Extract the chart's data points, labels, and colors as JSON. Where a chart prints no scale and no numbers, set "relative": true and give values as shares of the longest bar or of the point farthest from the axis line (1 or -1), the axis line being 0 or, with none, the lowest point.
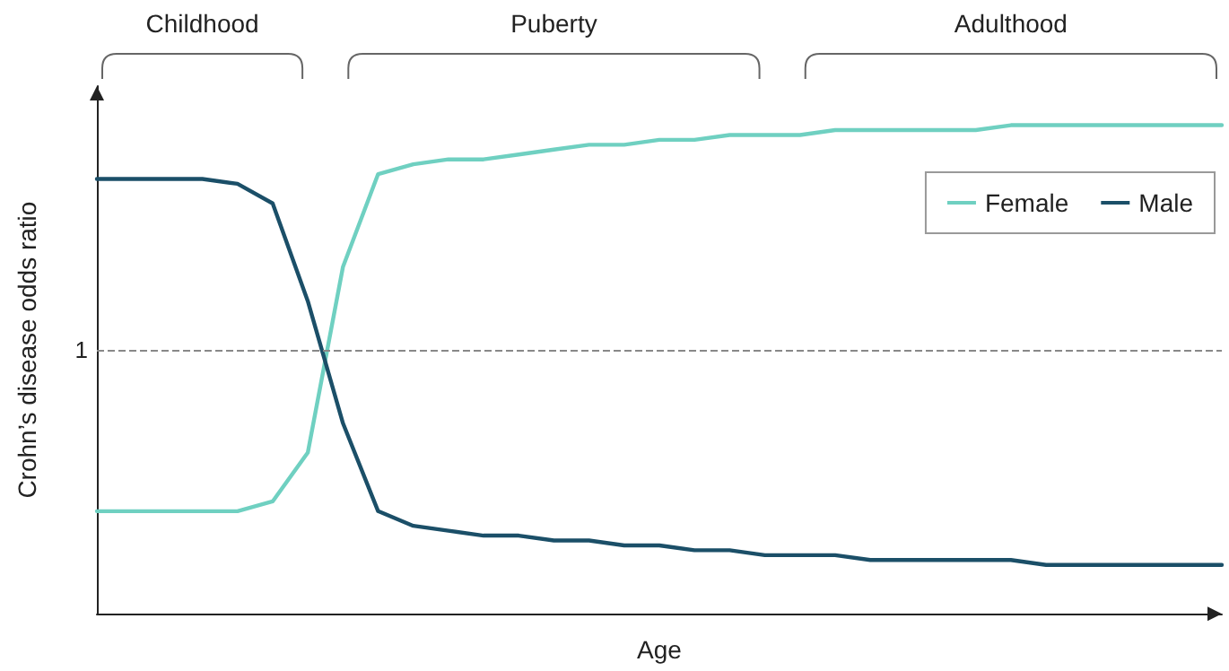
{
  "chart_data": {
    "type": "line",
    "relative": true,
    "xlabel": "Age",
    "ylabel": "Crohn’s disease odds ratio",
    "annotations": [
      "Childhood",
      "Puberty",
      "Adulthood"
    ],
    "categories": [
      null,
      null,
      null,
      null,
      null,
      null,
      null,
      null,
      null,
      null,
      null,
      null,
      null,
      null,
      null,
      null,
      null,
      null,
      null,
      null,
      null,
      null,
      null,
      null,
      null,
      null,
      null,
      null,
      null,
      null,
      null,
      null,
      null
    ],
    "series": [
      {
        "name": "Female",
        "color": "#6fd0c1",
        "values": [
          0.21,
          0.21,
          0.21,
          0.21,
          0.21,
          0.23,
          0.33,
          0.71,
          0.9,
          0.92,
          0.93,
          0.93,
          0.94,
          0.95,
          0.96,
          0.96,
          0.97,
          0.97,
          0.98,
          0.98,
          0.98,
          0.99,
          0.99,
          0.99,
          0.99,
          0.99,
          1,
          1,
          1,
          1,
          1,
          1,
          1
        ]
      },
      {
        "name": "Male",
        "color": "#1b4f68",
        "values": [
          0.89,
          0.89,
          0.89,
          0.89,
          0.88,
          0.84,
          0.64,
          0.39,
          0.21,
          0.18,
          0.17,
          0.16,
          0.16,
          0.15,
          0.15,
          0.14,
          0.14,
          0.13,
          0.13,
          0.12,
          0.12,
          0.12,
          0.11,
          0.11,
          0.11,
          0.11,
          0.11,
          0.1,
          0.1,
          0.1,
          0.1,
          0.1,
          0.1
        ]
      }
    ],
    "ref_lines": [
      {
        "axis": "y",
        "value": 0.54,
        "label": "1",
        "color": "#888888",
        "line_style": "dashed"
      }
    ],
    "legend": "top right",
    "marker": "none",
    "line_style": "solid",
    "grid": false
  }
}
